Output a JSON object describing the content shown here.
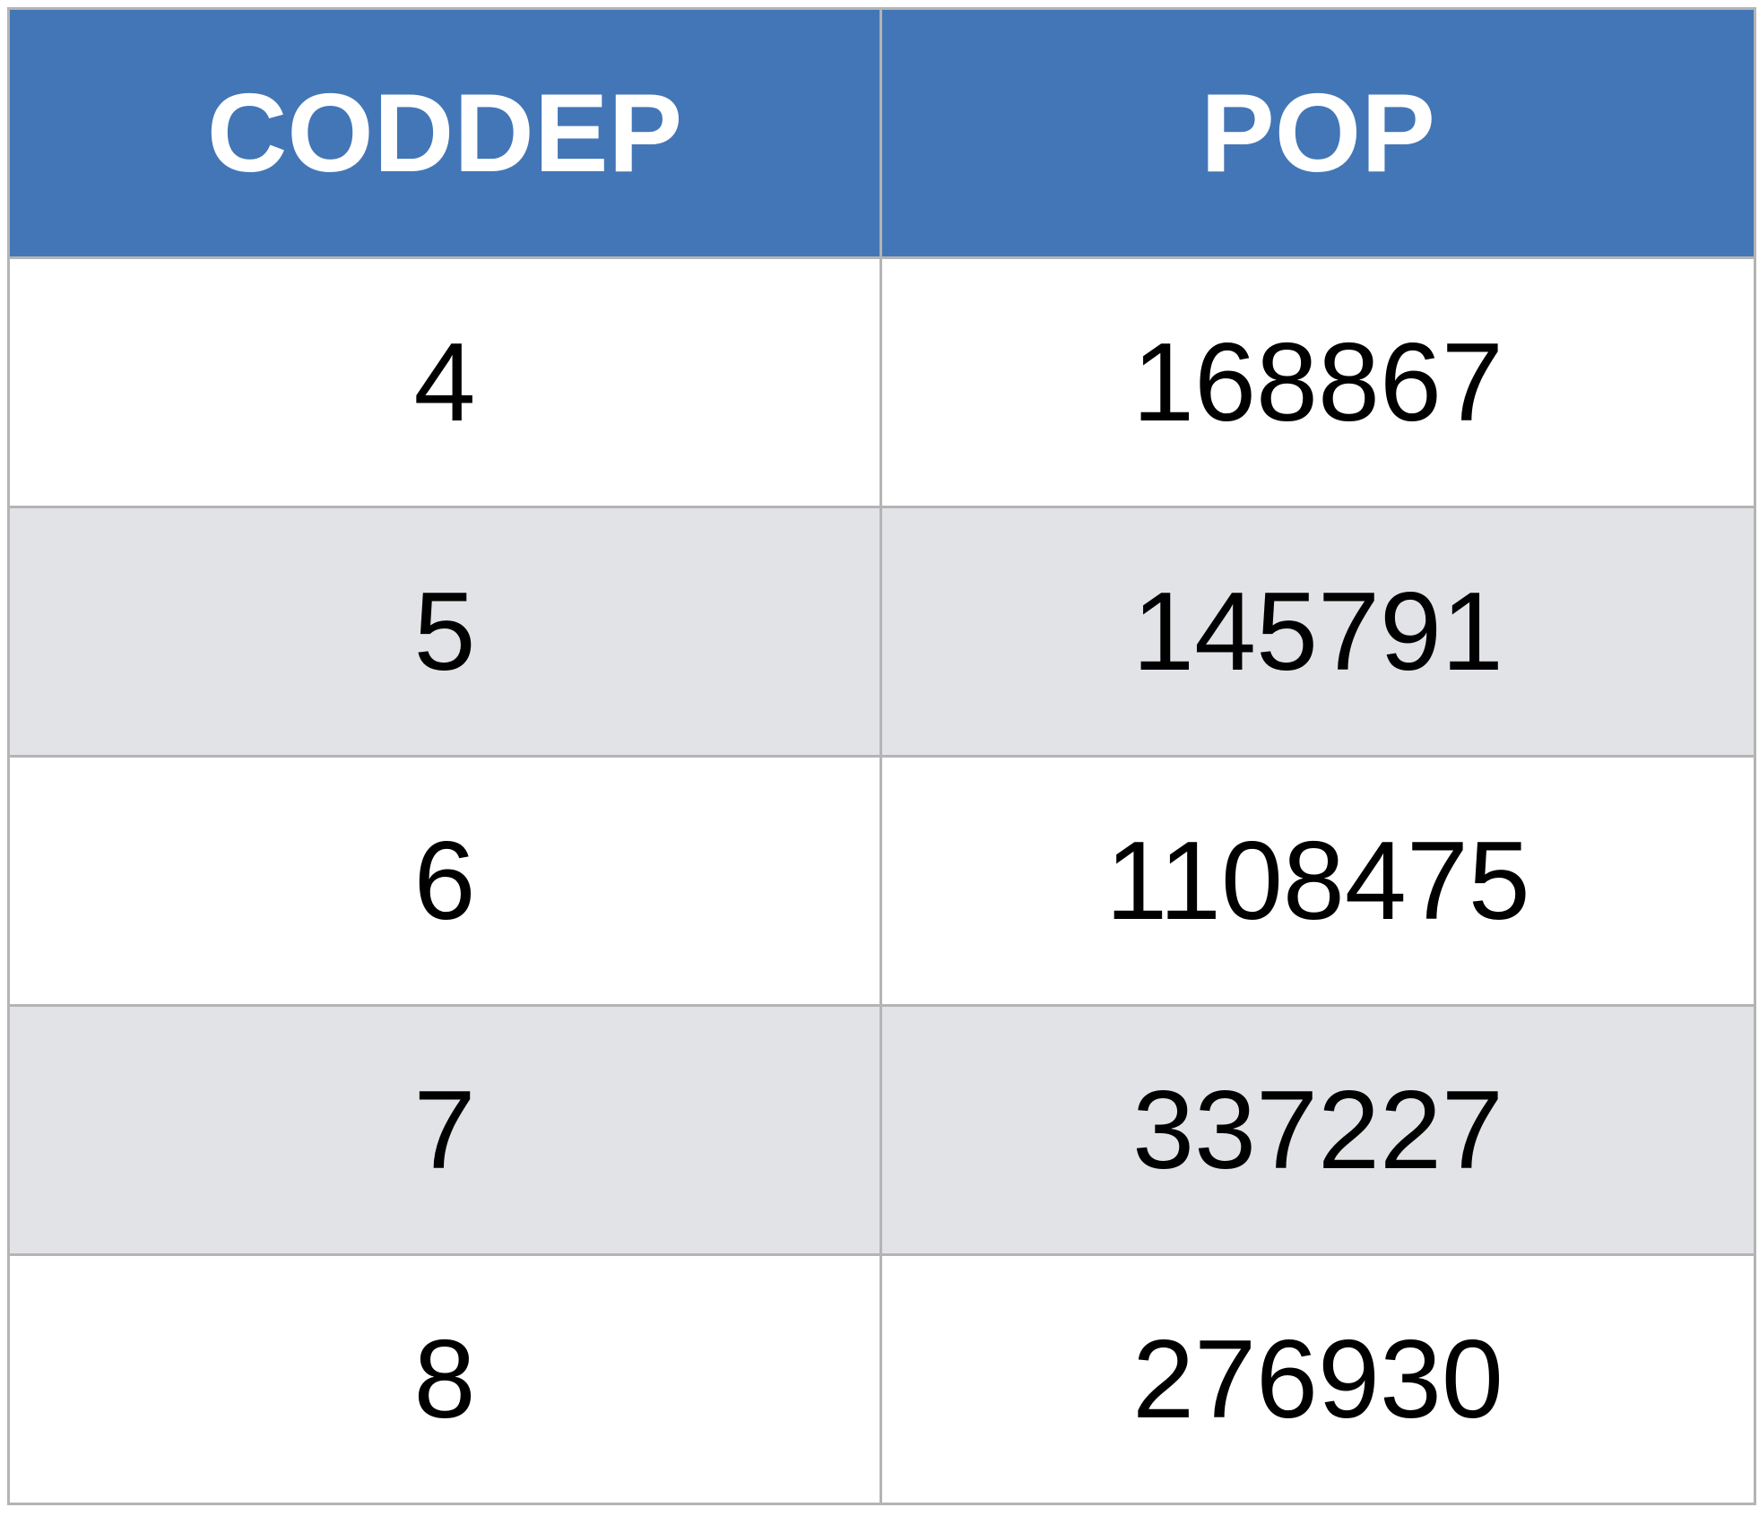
{
  "table": {
    "headers": [
      "CODDEP",
      "POP"
    ],
    "rows": [
      [
        "4",
        "168867"
      ],
      [
        "5",
        "145791"
      ],
      [
        "6",
        "1108475"
      ],
      [
        "7",
        "337227"
      ],
      [
        "8",
        "276930"
      ]
    ]
  },
  "colors": {
    "header_background": "#4376b6",
    "header_text": "#ffffff",
    "row_alt_background": "#e2e3e7",
    "row_background": "#ffffff",
    "grid_line": "#b4b4b4"
  }
}
